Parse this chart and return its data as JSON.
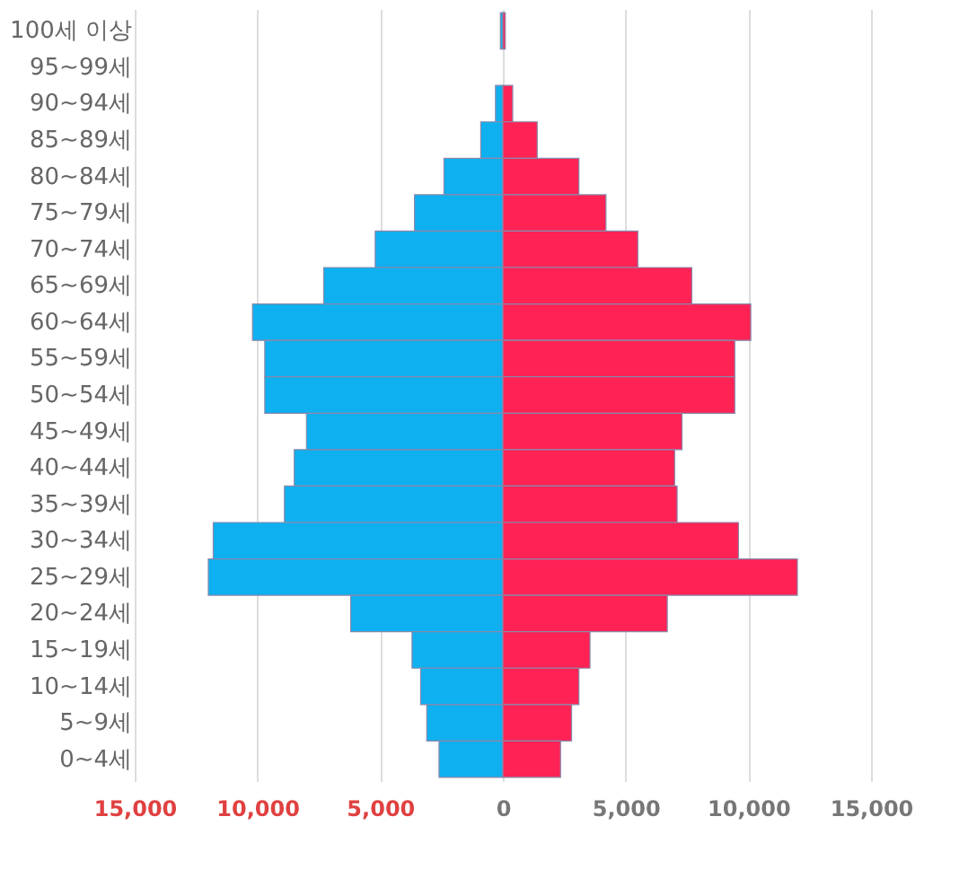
{
  "chart_data": {
    "type": "bar",
    "orientation": "horizontal",
    "categories": [
      "100세 이상",
      "95~99세",
      "90~94세",
      "85~89세",
      "80~84세",
      "75~79세",
      "70~74세",
      "65~69세",
      "60~64세",
      "55~59세",
      "50~54세",
      "45~49세",
      "40~44세",
      "35~39세",
      "30~34세",
      "25~29세",
      "20~24세",
      "15~19세",
      "10~14세",
      "5~9세",
      "0~4세"
    ],
    "series": [
      {
        "color": "#0fb0f0",
        "values": [
          -100,
          null,
          -300,
          -900,
          -2400,
          -3600,
          -5200,
          -7300,
          -10200,
          -9700,
          -9700,
          -8000,
          -8500,
          -8900,
          -11800,
          -12000,
          -6200,
          -3700,
          -3350,
          -3100,
          -2600
        ]
      },
      {
        "color": "#ff2255",
        "values": [
          100,
          null,
          400,
          1400,
          3100,
          4200,
          5500,
          7700,
          10100,
          9450,
          9450,
          7300,
          7000,
          7100,
          9600,
          12000,
          6700,
          3550,
          3100,
          2800,
          2350
        ]
      }
    ],
    "xlim": [
      -15000,
      15000
    ],
    "xticks": [
      {
        "value": -15000,
        "label": "15,000"
      },
      {
        "value": -10000,
        "label": "10,000"
      },
      {
        "value": -5000,
        "label": "5,000"
      },
      0,
      {
        "value": 5000,
        "label": "5,000"
      },
      {
        "value": 10000,
        "label": "10,000"
      },
      {
        "value": 15000,
        "label": "15,000"
      }
    ],
    "grid": "x",
    "stacked": true
  }
}
